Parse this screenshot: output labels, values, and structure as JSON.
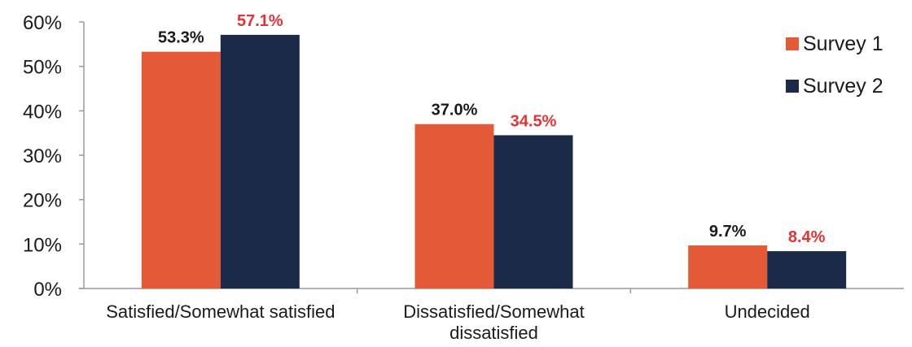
{
  "chart_data": {
    "type": "bar",
    "title": "",
    "xlabel": "",
    "ylabel": "",
    "ylim": [
      0,
      0.6
    ],
    "yticks": [
      0,
      0.1,
      0.2,
      0.3,
      0.4,
      0.5,
      0.6
    ],
    "ytick_labels": [
      "0%",
      "10%",
      "20%",
      "30%",
      "40%",
      "50%",
      "60%"
    ],
    "categories": [
      [
        "Satisfied/Somewhat satisfied"
      ],
      [
        "Dissatisfied/Somewhat",
        "dissatisfied"
      ],
      [
        "Undecided"
      ]
    ],
    "series": [
      {
        "name": "Survey 1",
        "color": "#e55a36",
        "values": [
          0.533,
          0.37,
          0.097
        ],
        "labels": [
          "53.3%",
          "37.0%",
          "9.7%"
        ]
      },
      {
        "name": "Survey 2",
        "color": "#1b2a48",
        "values": [
          0.571,
          0.345,
          0.084
        ],
        "labels": [
          "57.1%",
          "34.5%",
          "8.4%"
        ]
      }
    ],
    "data_label_colors": [
      [
        "#1a1a1a",
        "#1a1a1a",
        "#1a1a1a"
      ],
      [
        "#e53232",
        "#e53232",
        "#e53232"
      ]
    ],
    "legend_position": "top-right",
    "grid": false
  }
}
